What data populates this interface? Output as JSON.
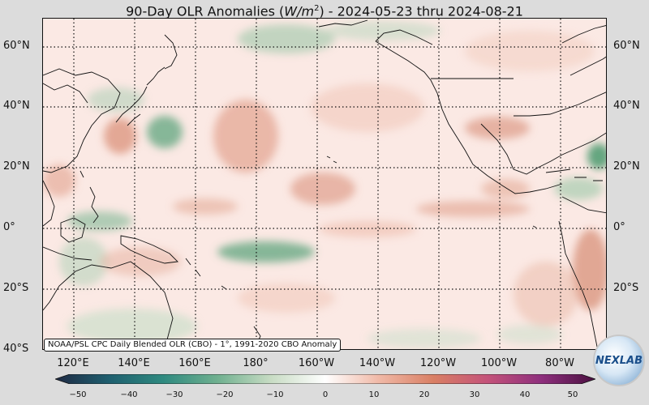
{
  "header": {
    "title_prefix": "90-Day OLR Anomalies (",
    "title_units": "W/m",
    "title_units_sup": "2",
    "title_suffix": ") - 2024-05-23 thru 2024-08-21"
  },
  "map": {
    "lat_labels": [
      "60°N",
      "40°N",
      "20°N",
      "0°",
      "20°S",
      "40°S"
    ],
    "lon_labels": [
      "120°E",
      "140°E",
      "160°E",
      "180°",
      "160°W",
      "140°W",
      "120°W",
      "100°W",
      "80°W"
    ]
  },
  "source_note": "NOAA/PSL CPC Daily Blended OLR (CBO) - 1°, 1991-2020 CBO Anomaly",
  "colorbar": {
    "ticks": [
      "−50",
      "−40",
      "−30",
      "−20",
      "−10",
      "0",
      "10",
      "20",
      "30",
      "40",
      "50"
    ],
    "colors": [
      "#1f2a44",
      "#1f5f6f",
      "#2f8a80",
      "#6fb08f",
      "#c8dcc4",
      "#ffffff",
      "#f0b8a6",
      "#d97f64",
      "#c4537a",
      "#8e2f7d",
      "#4a1040"
    ]
  },
  "logo": {
    "label": "NEXLAB"
  }
}
